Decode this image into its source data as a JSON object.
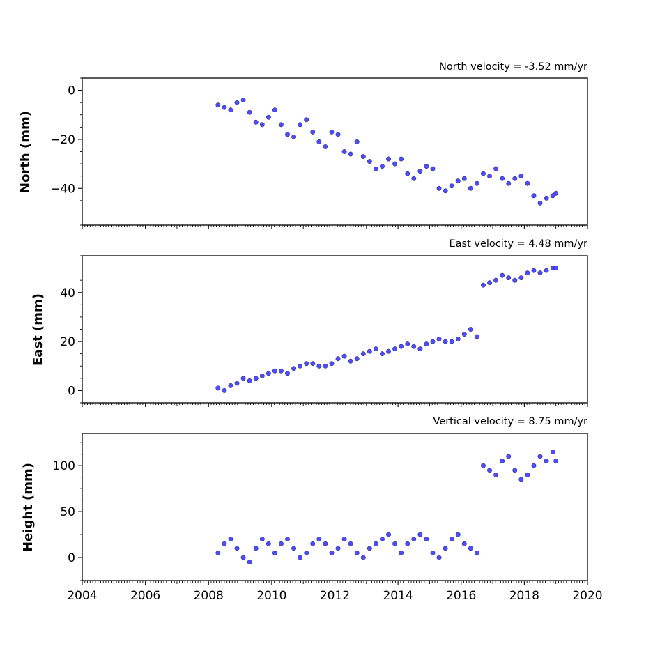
{
  "chart_data": [
    {
      "type": "scatter",
      "title": "North velocity = -3.52 mm/yr",
      "ylabel": "North (mm)",
      "ylim": [
        -55,
        5
      ],
      "yticks": [
        0,
        -20,
        -40
      ],
      "xlim": [
        2004,
        2020
      ],
      "marker_color": "#4d4dff",
      "series": [
        {
          "x": [
            2008.3,
            2008.5,
            2008.7,
            2008.9,
            2009.1,
            2009.3,
            2009.5,
            2009.7,
            2009.9,
            2010.1,
            2010.3,
            2010.5,
            2010.7,
            2010.9,
            2011.1,
            2011.3,
            2011.5,
            2011.7,
            2011.9,
            2012.1,
            2012.3,
            2012.5,
            2012.7,
            2012.9,
            2013.1,
            2013.3,
            2013.5,
            2013.7,
            2013.9,
            2014.1,
            2014.3,
            2014.5,
            2014.7,
            2014.9,
            2015.1,
            2015.3,
            2015.5,
            2015.7,
            2015.9,
            2016.1,
            2016.3,
            2016.5,
            2016.7,
            2016.9,
            2017.1,
            2017.3,
            2017.5,
            2017.7,
            2017.9,
            2018.1,
            2018.3,
            2018.5,
            2018.7,
            2018.9,
            2019.0
          ],
          "y": [
            -6,
            -7,
            -8,
            -5,
            -4,
            -9,
            -13,
            -14,
            -11,
            -8,
            -14,
            -18,
            -19,
            -14,
            -12,
            -17,
            -21,
            -23,
            -17,
            -18,
            -25,
            -26,
            -21,
            -27,
            -29,
            -32,
            -31,
            -28,
            -30,
            -28,
            -34,
            -36,
            -33,
            -31,
            -32,
            -40,
            -41,
            -39,
            -37,
            -36,
            -40,
            -38,
            -34,
            -35,
            -32,
            -36,
            -38,
            -36,
            -35,
            -38,
            -43,
            -46,
            -44,
            -43,
            -42
          ]
        }
      ]
    },
    {
      "type": "scatter",
      "title": "East velocity = 4.48 mm/yr",
      "ylabel": "East (mm)",
      "ylim": [
        -5,
        55
      ],
      "yticks": [
        0,
        20,
        40
      ],
      "xlim": [
        2004,
        2020
      ],
      "marker_color": "#4d4dff",
      "series": [
        {
          "x": [
            2008.3,
            2008.5,
            2008.7,
            2008.9,
            2009.1,
            2009.3,
            2009.5,
            2009.7,
            2009.9,
            2010.1,
            2010.3,
            2010.5,
            2010.7,
            2010.9,
            2011.1,
            2011.3,
            2011.5,
            2011.7,
            2011.9,
            2012.1,
            2012.3,
            2012.5,
            2012.7,
            2012.9,
            2013.1,
            2013.3,
            2013.5,
            2013.7,
            2013.9,
            2014.1,
            2014.3,
            2014.5,
            2014.7,
            2014.9,
            2015.1,
            2015.3,
            2015.5,
            2015.7,
            2015.9,
            2016.1,
            2016.3,
            2016.5,
            2016.7,
            2016.9,
            2017.1,
            2017.3,
            2017.5,
            2017.7,
            2017.9,
            2018.1,
            2018.3,
            2018.5,
            2018.7,
            2018.9,
            2019.0
          ],
          "y": [
            1,
            0,
            2,
            3,
            5,
            4,
            5,
            6,
            7,
            8,
            8,
            7,
            9,
            10,
            11,
            11,
            10,
            10,
            11,
            13,
            14,
            12,
            13,
            15,
            16,
            17,
            15,
            16,
            17,
            18,
            19,
            18,
            17,
            19,
            20,
            21,
            20,
            20,
            21,
            23,
            25,
            22,
            43,
            44,
            45,
            47,
            46,
            45,
            46,
            48,
            49,
            48,
            49,
            50,
            50
          ]
        }
      ]
    },
    {
      "type": "scatter",
      "title": "Vertical velocity = 8.75 mm/yr",
      "ylabel": "Height (mm)",
      "ylim": [
        -25,
        135
      ],
      "yticks": [
        0,
        50,
        100
      ],
      "xlim": [
        2004,
        2020
      ],
      "xticks": [
        2004,
        2006,
        2008,
        2010,
        2012,
        2014,
        2016,
        2018,
        2020
      ],
      "marker_color": "#4d4dff",
      "series": [
        {
          "x": [
            2008.3,
            2008.5,
            2008.7,
            2008.9,
            2009.1,
            2009.3,
            2009.5,
            2009.7,
            2009.9,
            2010.1,
            2010.3,
            2010.5,
            2010.7,
            2010.9,
            2011.1,
            2011.3,
            2011.5,
            2011.7,
            2011.9,
            2012.1,
            2012.3,
            2012.5,
            2012.7,
            2012.9,
            2013.1,
            2013.3,
            2013.5,
            2013.7,
            2013.9,
            2014.1,
            2014.3,
            2014.5,
            2014.7,
            2014.9,
            2015.1,
            2015.3,
            2015.5,
            2015.7,
            2015.9,
            2016.1,
            2016.3,
            2016.5,
            2016.7,
            2016.9,
            2017.1,
            2017.3,
            2017.5,
            2017.7,
            2017.9,
            2018.1,
            2018.3,
            2018.5,
            2018.7,
            2018.9,
            2019.0
          ],
          "y": [
            5,
            15,
            20,
            10,
            0,
            -5,
            10,
            20,
            15,
            5,
            15,
            20,
            10,
            0,
            5,
            15,
            20,
            15,
            5,
            10,
            20,
            15,
            5,
            0,
            10,
            15,
            20,
            25,
            15,
            5,
            15,
            20,
            25,
            20,
            5,
            0,
            10,
            20,
            25,
            15,
            10,
            5,
            100,
            95,
            90,
            105,
            110,
            95,
            85,
            90,
            100,
            110,
            105,
            115,
            105
          ]
        }
      ]
    }
  ]
}
